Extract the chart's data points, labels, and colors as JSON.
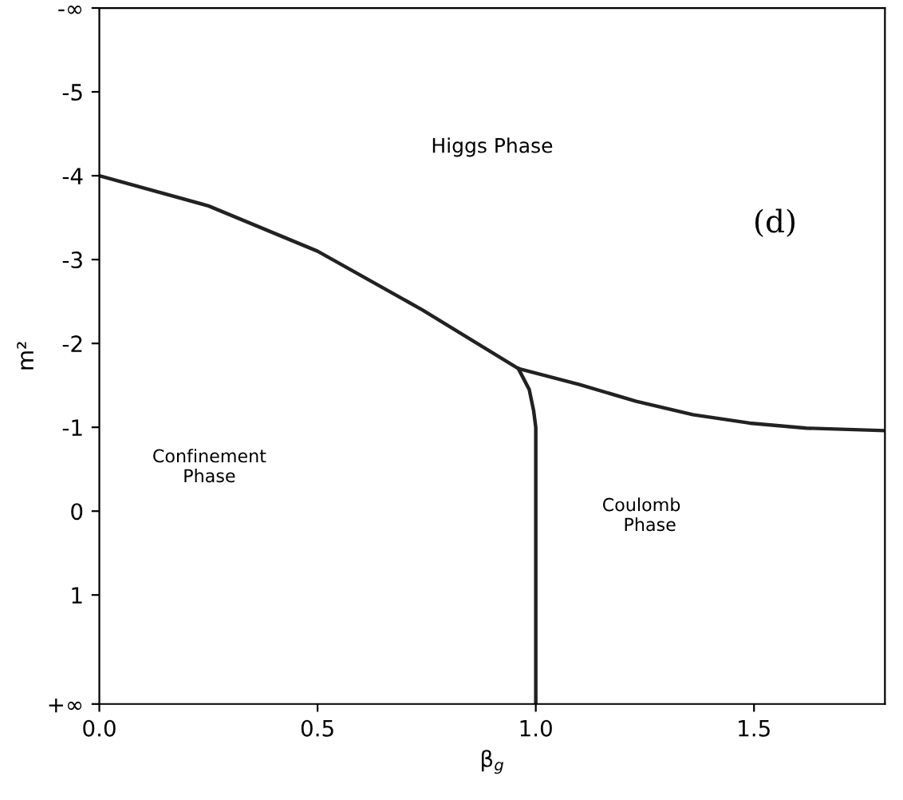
{
  "chart_data": {
    "type": "line",
    "xlabel": "β$_{g}$",
    "ylabel": "m²",
    "xlim": [
      0,
      1.8
    ],
    "ylim": [
      2.3,
      -6.0
    ],
    "xticks": [
      {
        "value": 0,
        "label": "0.0"
      },
      {
        "value": 0.5,
        "label": "0.5"
      },
      {
        "value": 1.0,
        "label": "1.0"
      },
      {
        "value": 1.5,
        "label": "1.5"
      }
    ],
    "yticks": [
      {
        "value": 2.3,
        "label": "+∞"
      },
      1,
      0,
      -1,
      -2,
      -3,
      -4,
      -5,
      {
        "value": -6.0,
        "label": "-∞"
      }
    ],
    "grid": false,
    "legend": false,
    "marker": "none",
    "line_style": "solid",
    "series": [
      {
        "color": "#222222",
        "x": [
          0,
          0.25,
          0.5,
          0.74,
          0.96,
          1.1,
          1.23,
          1.36,
          1.49,
          1.62,
          1.8
        ],
        "values": [
          -4,
          -3.64,
          -3.1,
          -2.4,
          -1.7,
          -1.51,
          -1.31,
          -1.15,
          -1.05,
          -0.99,
          -0.96
        ]
      },
      {
        "color": "#222222",
        "x": [
          0.96,
          0.985,
          0.995,
          1.0,
          1.0
        ],
        "values": [
          -1.7,
          -1.45,
          -1.2,
          -1.0,
          2.3
        ]
      }
    ],
    "annotations": [
      "Higgs Phase",
      "(d)",
      "Confinement\nPhase",
      "Coulomb\n   Phase"
    ]
  }
}
